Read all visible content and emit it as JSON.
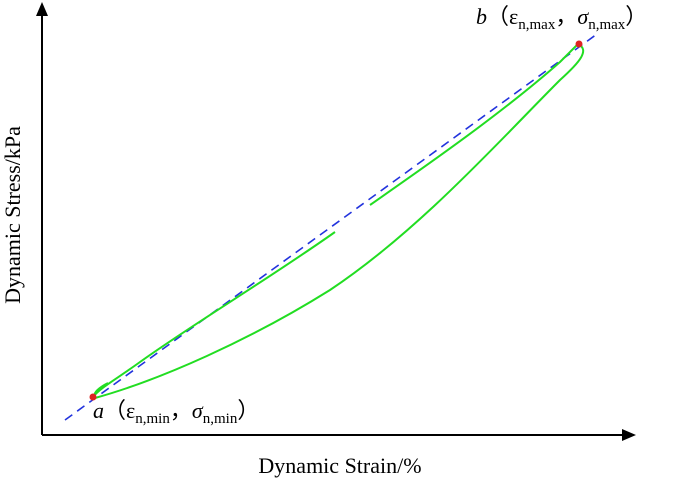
{
  "axes": {
    "x_label": "Dynamic Strain/%",
    "y_label": "Dynamic Stress/kPa"
  },
  "points": [
    {
      "name": "a",
      "open": "（",
      "strain": "ε",
      "strain_sub": "n,min",
      "sep": "，",
      "stress": "σ",
      "stress_sub": "n,min",
      "close": "）"
    },
    {
      "name": "b",
      "open": "（",
      "strain": "ε",
      "strain_sub": "n,max",
      "sep": "，",
      "stress": "σ",
      "stress_sub": "n,max",
      "close": "）"
    }
  ]
}
